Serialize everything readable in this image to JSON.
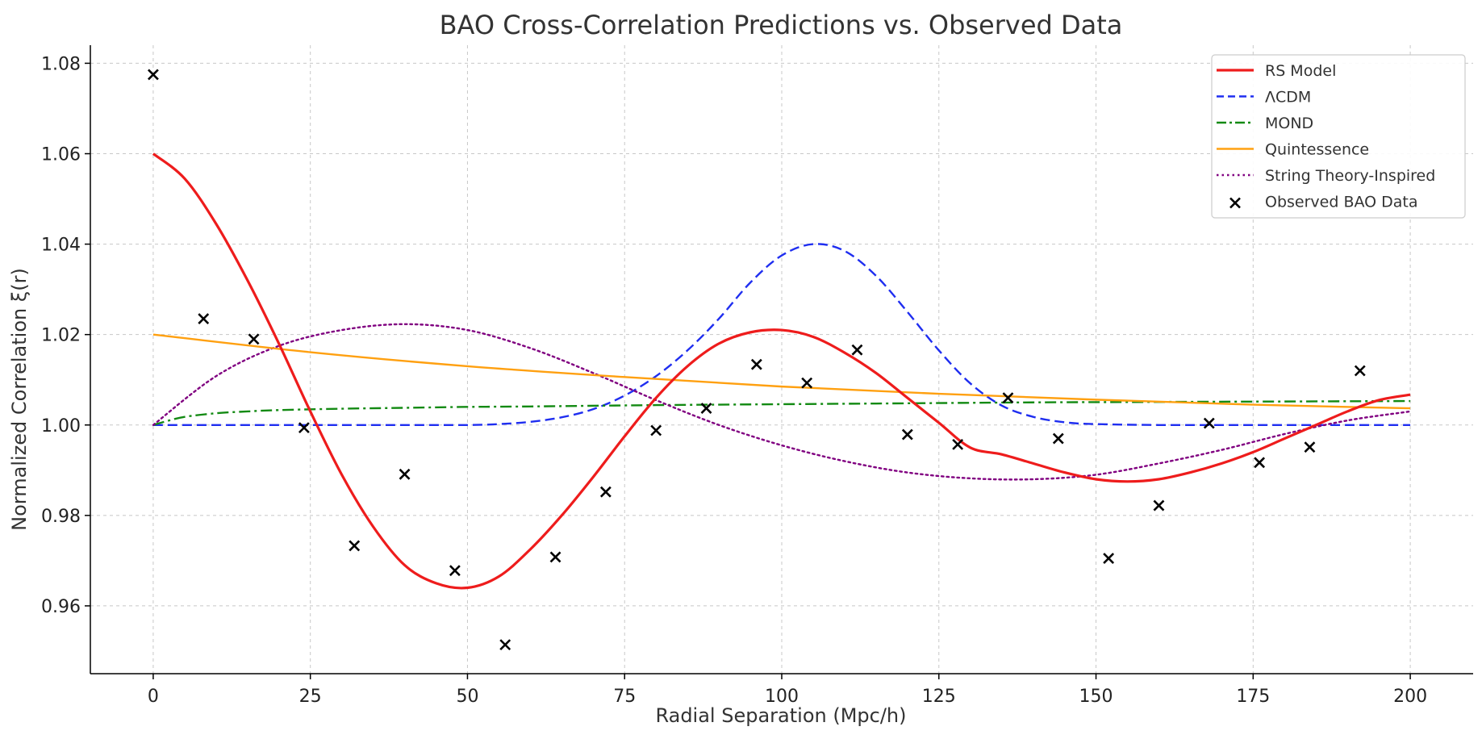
{
  "chart_data": {
    "type": "line",
    "title": "BAO Cross-Correlation Predictions vs. Observed Data",
    "xlabel": "Radial Separation (Mpc/h)",
    "ylabel": "Normalized Correlation ξ(r)",
    "xlim": [
      -10,
      210
    ],
    "ylim": [
      0.945,
      1.084
    ],
    "xticks": [
      0,
      25,
      50,
      75,
      100,
      125,
      150,
      175,
      200
    ],
    "yticks": [
      0.96,
      0.98,
      1.0,
      1.02,
      1.04,
      1.06,
      1.08
    ],
    "xtick_labels": [
      "0",
      "25",
      "50",
      "75",
      "100",
      "125",
      "150",
      "175",
      "200"
    ],
    "ytick_labels": [
      "0.96",
      "0.98",
      "1.00",
      "1.02",
      "1.04",
      "1.06",
      "1.08"
    ],
    "grid": true,
    "legend_position": "top-right",
    "series": [
      {
        "name": "RS Model",
        "color": "#ee1c1c",
        "style": "solid",
        "x": [
          0,
          5,
          10,
          15,
          20,
          25,
          30,
          35,
          40,
          45,
          50,
          55,
          60,
          65,
          70,
          75,
          80,
          85,
          90,
          95,
          100,
          105,
          110,
          115,
          120,
          125,
          130,
          135,
          140,
          145,
          150,
          155,
          160,
          165,
          170,
          175,
          180,
          185,
          190,
          195,
          200
        ],
        "y": [
          1.06,
          1.0545,
          1.0445,
          1.032,
          1.018,
          1.003,
          0.989,
          0.9775,
          0.969,
          0.965,
          0.964,
          0.9665,
          0.9725,
          0.98,
          0.9885,
          0.9975,
          1.006,
          1.013,
          1.018,
          1.0205,
          1.021,
          1.0195,
          1.016,
          1.0115,
          1.006,
          1.0005,
          0.995,
          0.9935,
          0.9915,
          0.9895,
          0.988,
          0.9875,
          0.988,
          0.9895,
          0.9915,
          0.994,
          0.997,
          1.0,
          1.003,
          1.0055,
          1.0067
        ]
      },
      {
        "name": "ΛCDM",
        "color": "#1f2ef0",
        "style": "dashed",
        "x": [
          0,
          10,
          20,
          30,
          40,
          50,
          55,
          60,
          65,
          70,
          75,
          80,
          85,
          90,
          95,
          100,
          105,
          110,
          115,
          120,
          125,
          130,
          135,
          140,
          145,
          150,
          160,
          170,
          180,
          190,
          200
        ],
        "y": [
          1.0,
          1.0,
          1.0,
          1.0,
          1.0,
          1.0,
          1.0002,
          1.0007,
          1.0017,
          1.0035,
          1.0065,
          1.0108,
          1.0165,
          1.0235,
          1.0315,
          1.0375,
          1.04,
          1.0385,
          1.033,
          1.025,
          1.0165,
          1.0092,
          1.0043,
          1.0018,
          1.0006,
          1.0002,
          1.0,
          1.0,
          1.0,
          1.0,
          1.0
        ]
      },
      {
        "name": "MOND",
        "color": "#138a13",
        "style": "dashdot",
        "x": [
          0,
          2,
          5,
          10,
          15,
          20,
          30,
          40,
          50,
          60,
          80,
          100,
          120,
          140,
          160,
          180,
          200
        ],
        "y": [
          1.0,
          1.0008,
          1.0018,
          1.0026,
          1.003,
          1.0033,
          1.0036,
          1.0038,
          1.004,
          1.0041,
          1.0044,
          1.0046,
          1.0048,
          1.005,
          1.0051,
          1.0052,
          1.0053
        ]
      },
      {
        "name": "Quintessence",
        "color": "#ffa010",
        "style": "solid",
        "x": [
          0,
          25,
          50,
          75,
          100,
          125,
          150,
          175,
          200
        ],
        "y": [
          1.02,
          1.0161,
          1.013,
          1.0106,
          1.0085,
          1.0069,
          1.0056,
          1.0045,
          1.0037
        ]
      },
      {
        "name": "String Theory-Inspired",
        "color": "#800080",
        "style": "dotted",
        "x": [
          0,
          10,
          20,
          30,
          40,
          50,
          60,
          70,
          80,
          90,
          100,
          110,
          120,
          130,
          140,
          150,
          160,
          170,
          180,
          190,
          200
        ],
        "y": [
          1.0,
          1.0108,
          1.0175,
          1.021,
          1.0223,
          1.021,
          1.017,
          1.0115,
          1.0055,
          1.0,
          0.9955,
          0.992,
          0.9895,
          0.9882,
          0.988,
          0.989,
          0.9915,
          0.9945,
          0.998,
          1.001,
          1.003
        ]
      },
      {
        "name": "Observed BAO Data",
        "color": "#000000",
        "style": "markers",
        "x": [
          0,
          8,
          16,
          24,
          32,
          40,
          48,
          56,
          64,
          72,
          80,
          88,
          96,
          104,
          112,
          120,
          128,
          136,
          144,
          152,
          160,
          168,
          176,
          184,
          192
        ],
        "y": [
          1.0775,
          1.0235,
          1.019,
          0.9994,
          0.9733,
          0.9891,
          0.9678,
          0.9514,
          0.9708,
          0.9852,
          0.9988,
          1.0037,
          1.0134,
          1.0093,
          1.0166,
          0.9979,
          0.9957,
          1.006,
          0.997,
          0.9705,
          0.9822,
          1.0004,
          0.9917,
          0.9951,
          1.012
        ]
      }
    ]
  }
}
